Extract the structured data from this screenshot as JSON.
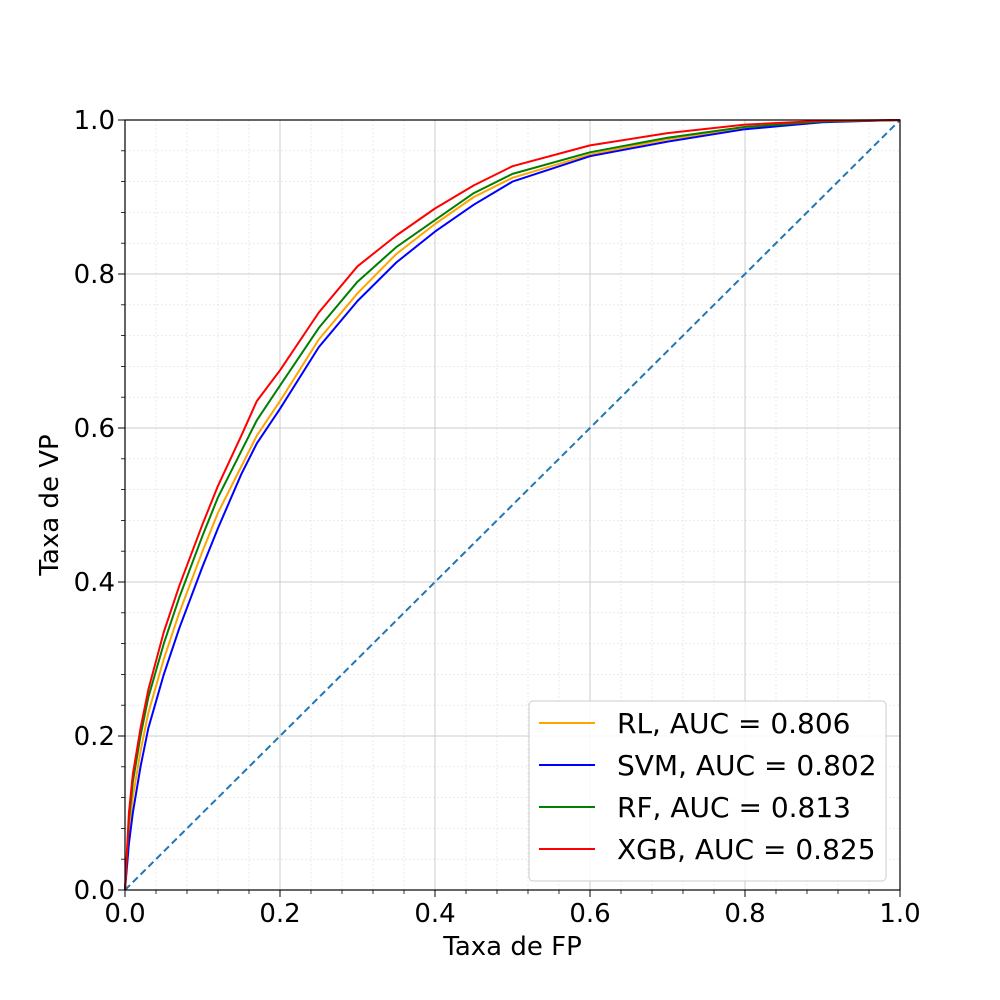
{
  "chart_data": {
    "type": "line",
    "title": "",
    "xlabel": "Taxa de FP",
    "ylabel": "Taxa de VP",
    "xlim": [
      0.0,
      1.0
    ],
    "ylim": [
      0.0,
      1.0
    ],
    "xticks": [
      "0.0",
      "0.2",
      "0.4",
      "0.6",
      "0.8",
      "1.0"
    ],
    "yticks": [
      "0.0",
      "0.2",
      "0.4",
      "0.6",
      "0.8",
      "1.0"
    ],
    "grid": {
      "major": true,
      "minor": true
    },
    "legend_position": "lower-right",
    "series": [
      {
        "name": "RL, AUC = 0.806",
        "color": "#ffa500",
        "x": [
          0,
          0.005,
          0.01,
          0.02,
          0.03,
          0.05,
          0.07,
          0.1,
          0.12,
          0.15,
          0.17,
          0.2,
          0.25,
          0.3,
          0.35,
          0.4,
          0.45,
          0.5,
          0.6,
          0.7,
          0.8,
          0.9,
          1.0
        ],
        "y": [
          0,
          0.08,
          0.12,
          0.18,
          0.23,
          0.3,
          0.36,
          0.44,
          0.49,
          0.55,
          0.59,
          0.635,
          0.715,
          0.775,
          0.826,
          0.865,
          0.9,
          0.925,
          0.955,
          0.975,
          0.99,
          0.998,
          1.0
        ]
      },
      {
        "name": "SVM, AUC = 0.802",
        "color": "#0000ff",
        "x": [
          0,
          0.005,
          0.01,
          0.02,
          0.03,
          0.05,
          0.07,
          0.1,
          0.12,
          0.15,
          0.17,
          0.2,
          0.25,
          0.3,
          0.35,
          0.4,
          0.45,
          0.5,
          0.6,
          0.7,
          0.8,
          0.9,
          1.0
        ],
        "y": [
          0,
          0.06,
          0.1,
          0.16,
          0.21,
          0.28,
          0.34,
          0.42,
          0.47,
          0.54,
          0.58,
          0.625,
          0.705,
          0.765,
          0.815,
          0.855,
          0.89,
          0.92,
          0.953,
          0.972,
          0.988,
          0.997,
          1.0
        ]
      },
      {
        "name": "RF, AUC = 0.813",
        "color": "#008000",
        "x": [
          0,
          0.005,
          0.01,
          0.02,
          0.03,
          0.05,
          0.07,
          0.1,
          0.12,
          0.15,
          0.17,
          0.2,
          0.25,
          0.3,
          0.35,
          0.4,
          0.45,
          0.5,
          0.6,
          0.7,
          0.8,
          0.9,
          1.0
        ],
        "y": [
          0,
          0.09,
          0.14,
          0.2,
          0.25,
          0.32,
          0.38,
          0.46,
          0.51,
          0.57,
          0.61,
          0.655,
          0.73,
          0.79,
          0.835,
          0.87,
          0.905,
          0.93,
          0.958,
          0.977,
          0.991,
          0.998,
          1.0
        ]
      },
      {
        "name": "XGB, AUC = 0.825",
        "color": "#ff0000",
        "x": [
          0,
          0.005,
          0.01,
          0.02,
          0.03,
          0.05,
          0.07,
          0.1,
          0.12,
          0.15,
          0.17,
          0.2,
          0.25,
          0.3,
          0.35,
          0.4,
          0.45,
          0.5,
          0.6,
          0.7,
          0.8,
          0.9,
          1.0
        ],
        "y": [
          0,
          0.1,
          0.15,
          0.21,
          0.26,
          0.335,
          0.395,
          0.475,
          0.525,
          0.59,
          0.635,
          0.675,
          0.75,
          0.81,
          0.85,
          0.885,
          0.915,
          0.94,
          0.967,
          0.983,
          0.994,
          0.999,
          1.0
        ]
      }
    ],
    "reference_line": {
      "name": "diagonal",
      "color": "#1f77b4",
      "x": [
        0,
        1
      ],
      "y": [
        0,
        1
      ]
    }
  }
}
